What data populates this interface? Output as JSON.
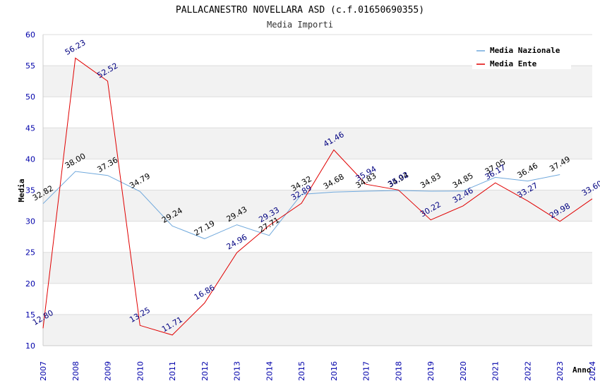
{
  "chart_data": {
    "type": "line",
    "title": "PALLACANESTRO NOVELLARA ASD (c.f.01650690355)",
    "subtitle": "Media Importi",
    "xlabel": "Anno",
    "ylabel": "Media",
    "ylim": [
      10,
      60
    ],
    "yticks": [
      "10",
      "15",
      "20",
      "25",
      "30",
      "35",
      "40",
      "45",
      "50",
      "55",
      "60"
    ],
    "categories": [
      "2007",
      "2008",
      "2009",
      "2010",
      "2011",
      "2012",
      "2013",
      "2014",
      "2015",
      "2016",
      "2017",
      "2018",
      "2019",
      "2020",
      "2021",
      "2022",
      "2023",
      "2024"
    ],
    "grid": true,
    "legend_position": "top-right",
    "series": [
      {
        "name": "Media Nazionale",
        "color": "#6fa8dc",
        "values": [
          32.82,
          38.0,
          37.36,
          34.79,
          29.24,
          27.19,
          29.43,
          27.71,
          34.32,
          34.68,
          34.83,
          34.94,
          34.83,
          34.85,
          37.05,
          36.46,
          37.49,
          null
        ],
        "labels": [
          "32.82",
          "38.00",
          "37.36",
          "34.79",
          "29.24",
          "27.19",
          "29.43",
          "27.71",
          "34.32",
          "34.68",
          "34.83",
          "34.94",
          "34.83",
          "34.85",
          "37.05",
          "36.46",
          "37.49",
          ""
        ]
      },
      {
        "name": "Media Ente",
        "color": "#e00000",
        "values": [
          12.8,
          56.23,
          52.52,
          13.25,
          11.71,
          16.86,
          24.96,
          29.33,
          32.89,
          41.46,
          35.94,
          35.02,
          30.22,
          32.46,
          36.17,
          33.27,
          29.98,
          33.6
        ],
        "labels": [
          "12.80",
          "56.23",
          "52.52",
          "13.25",
          "11.71",
          "16.86",
          "24.96",
          "29.33",
          "32.89",
          "41.46",
          "35.94",
          "35.02",
          "30.22",
          "32.46",
          "36.17",
          "33.27",
          "29.98",
          "33.60"
        ]
      }
    ]
  }
}
